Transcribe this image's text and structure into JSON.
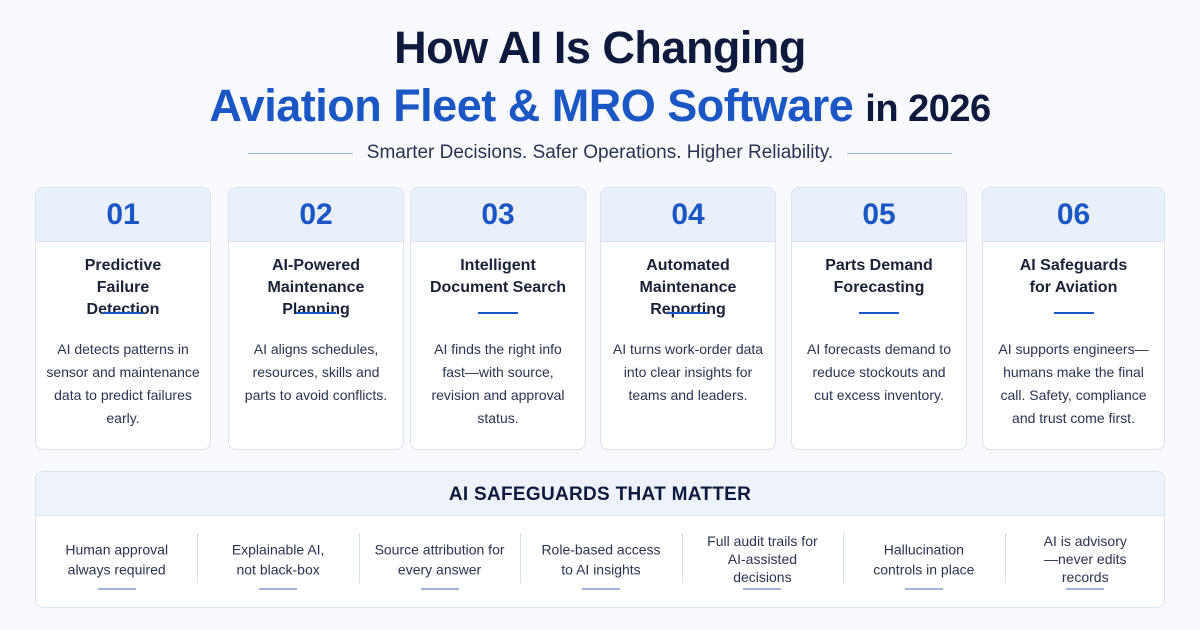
{
  "header": {
    "title_line1": "How AI Is Changing",
    "title_line2_accent": "Aviation Fleet & MRO Software",
    "title_line2_suffix": "in 2026",
    "subtitle": "Smarter Decisions. Safer Operations. Higher Reliability."
  },
  "cards": [
    {
      "number": "01",
      "title": "Predictive Failure Detection",
      "description": "AI detects patterns in sensor and maintenance data to predict failures early."
    },
    {
      "number": "02",
      "title": "AI-Powered Maintenance Planning",
      "description": "AI aligns schedules, resources, skills and parts to avoid conflicts."
    },
    {
      "number": "03",
      "title": "Intelligent Document Search",
      "description": "AI finds the right info fast—with source, revision and approval status."
    },
    {
      "number": "04",
      "title": "Automated Maintenance Reporting",
      "description": "AI turns work-order data into clear insights for teams and leaders."
    },
    {
      "number": "05",
      "title": "Parts Demand Forecasting",
      "description": "AI forecasts demand to reduce stockouts and cut excess inventory."
    },
    {
      "number": "06",
      "title": "AI Safeguards for Aviation",
      "description": "AI supports engineers—humans make the final call. Safety, compliance and trust come first."
    }
  ],
  "safeguards": {
    "heading": "AI SAFEGUARDS THAT MATTER",
    "items": [
      "Human approval always required",
      "Explainable AI, not black-box",
      "Source attribution for every answer",
      "Role-based access to AI insights",
      "Full audit trails for AI-assisted decisions",
      "Hallucination controls in place",
      "AI is advisory—never edits records"
    ]
  },
  "colors": {
    "accent": "#1b57c4",
    "navy": "#0e1a3d",
    "card_header": "#e9f0fb"
  }
}
